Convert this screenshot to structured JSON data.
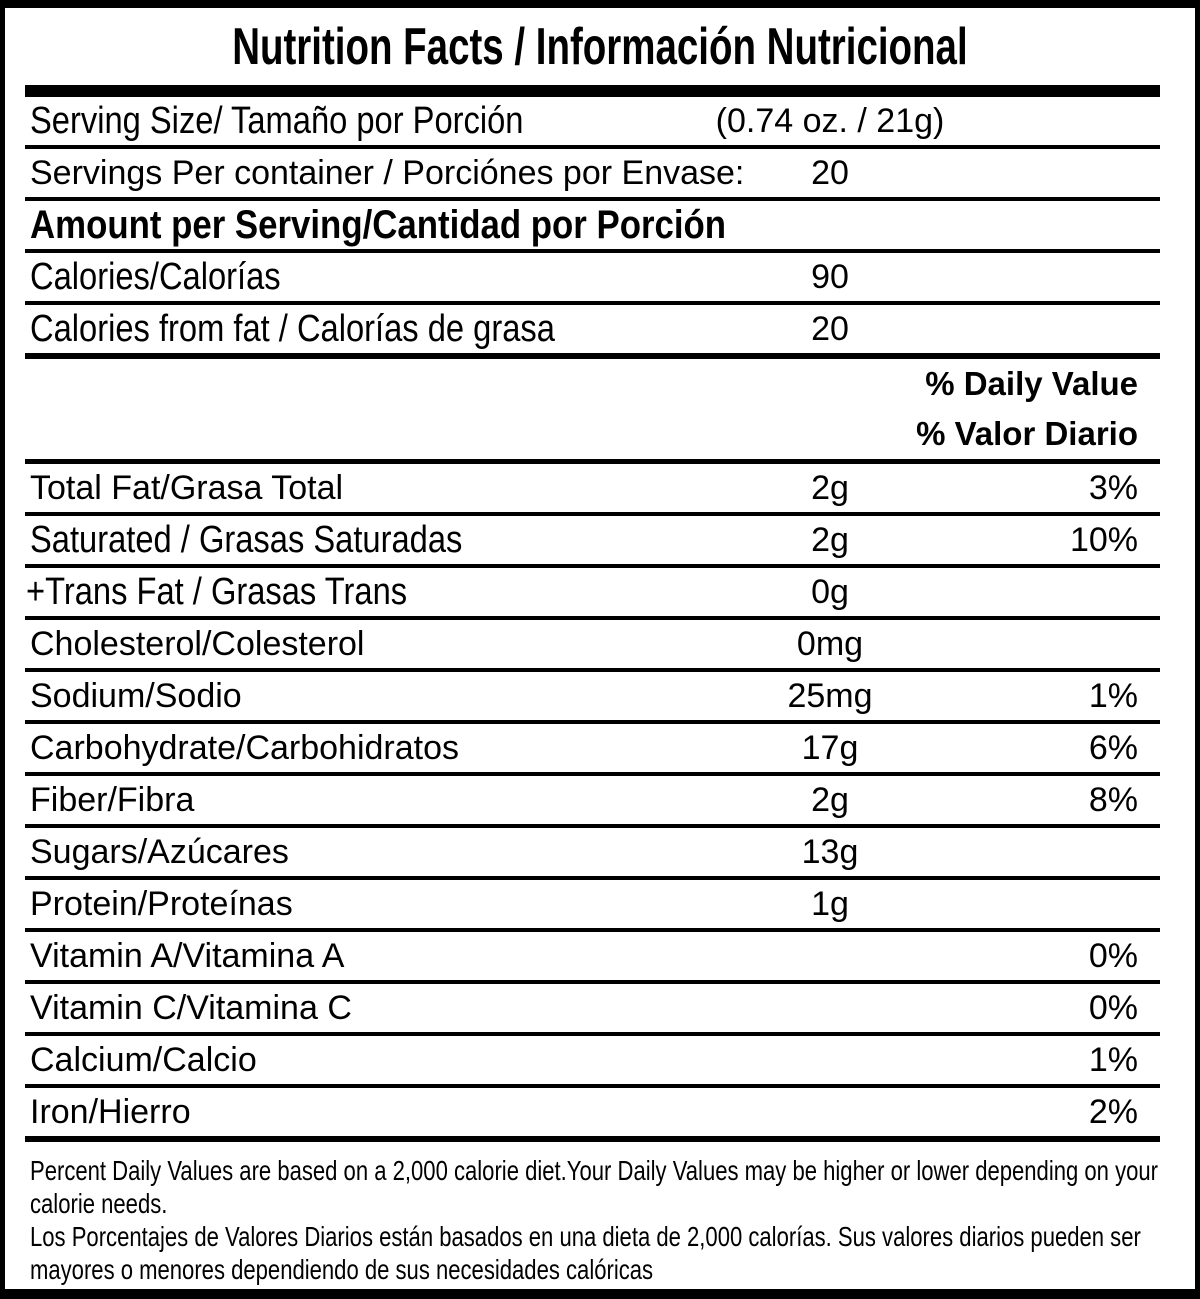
{
  "header": {
    "title": "Nutrition Facts / Información Nutricional"
  },
  "serving_info": {
    "serving_size_label": "Serving Size/ Tamaño por Porción",
    "serving_size_value": "(0.74 oz. / 21g)",
    "servings_per_container_label": "Servings Per container / Porciónes por Envase:",
    "servings_per_container_value": "20"
  },
  "amount_section": {
    "header": "Amount per Serving/Cantidad por Porción",
    "calories_label": "Calories/Calorías",
    "calories_value": "90",
    "calories_from_fat_label": "Calories from fat / Calorías de grasa",
    "calories_from_fat_value": "20"
  },
  "daily_value_header": {
    "line1": "% Daily Value",
    "line2": "% Valor Diario"
  },
  "nutrients": [
    {
      "label": "Total Fat/Grasa Total",
      "amount": "2g",
      "dv": "3%"
    },
    {
      "label": "Saturated / Grasas Saturadas",
      "amount": "2g",
      "dv": "10%"
    },
    {
      "label": "+Trans Fat / Grasas Trans",
      "amount": "0g",
      "dv": ""
    },
    {
      "label": "Cholesterol/Colesterol",
      "amount": "0mg",
      "dv": ""
    },
    {
      "label": "Sodium/Sodio",
      "amount": "25mg",
      "dv": "1%"
    },
    {
      "label": "Carbohydrate/Carbohidratos",
      "amount": "17g",
      "dv": "6%"
    },
    {
      "label": "Fiber/Fibra",
      "amount": "2g",
      "dv": "8%"
    },
    {
      "label": "Sugars/Azúcares",
      "amount": "13g",
      "dv": ""
    },
    {
      "label": "Protein/Proteínas",
      "amount": "1g",
      "dv": ""
    },
    {
      "label": "Vitamin A/Vitamina A",
      "amount": "",
      "dv": "0%"
    },
    {
      "label": "Vitamin C/Vitamina C",
      "amount": "",
      "dv": "0%"
    },
    {
      "label": "Calcium/Calcio",
      "amount": "",
      "dv": "1%"
    },
    {
      "label": "Iron/Hierro",
      "amount": "",
      "dv": "2%"
    }
  ],
  "footnote": {
    "en": "Percent Daily Values are based on a 2,000 calorie diet.Your Daily Values may be higher or lower depending on your calorie needs.",
    "es": "Los Porcentajes de Valores Diarios están basados en una dieta de 2,000 calorías. Sus valores diarios pueden ser mayores o menores dependiendo de sus necesidades calóricas"
  },
  "colors": {
    "text": "#000000",
    "background": "#ffffff"
  }
}
